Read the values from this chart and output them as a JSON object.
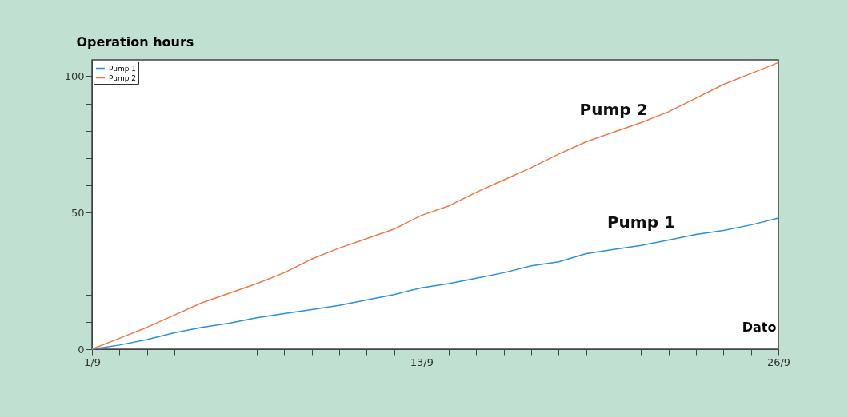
{
  "chart_data": {
    "type": "line",
    "xlabel": "Dato",
    "ylabel": "Operation hours",
    "x": [
      "--09-01",
      "--09-02",
      "--09-03",
      "--09-04",
      "--09-05",
      "--09-06",
      "--09-07",
      "--09-08",
      "--09-09",
      "--09-10",
      "--09-11",
      "--09-12",
      "--09-13",
      "--09-14",
      "--09-15",
      "--09-16",
      "--09-17",
      "--09-18",
      "--09-19",
      "--09-20",
      "--09-21",
      "--09-22",
      "--09-23",
      "--09-24",
      "--09-25",
      "--09-26"
    ],
    "series": [
      {
        "name": "Pump 1",
        "color": "#2a8fdc",
        "values": [
          0,
          1.5,
          3.5,
          6,
          8,
          9.5,
          11.5,
          13,
          14.5,
          16,
          18,
          20,
          22.5,
          24,
          26,
          28,
          30.5,
          32,
          35,
          36.5,
          38,
          40,
          42,
          43.5,
          45.5,
          48
        ]
      },
      {
        "name": "Pump 2",
        "color": "#f07846",
        "values": [
          0,
          4,
          8,
          12.5,
          17,
          20.5,
          24,
          28,
          33,
          37,
          40.5,
          44,
          49,
          52.5,
          57.5,
          62,
          66.5,
          71.5,
          76,
          79.5,
          83,
          87,
          92,
          97,
          101,
          105
        ]
      }
    ],
    "xlim": [
      "--09-01",
      "--09-26"
    ],
    "xticks": [
      {
        "value": "--09-01",
        "label": "1/9"
      },
      {
        "value": "--09-02",
        "label": null
      },
      {
        "value": "--09-03",
        "label": null
      },
      {
        "value": "--09-04",
        "label": null
      },
      {
        "value": "--09-05",
        "label": null
      },
      {
        "value": "--09-06",
        "label": null
      },
      {
        "value": "--09-07",
        "label": null
      },
      {
        "value": "--09-08",
        "label": null
      },
      {
        "value": "--09-09",
        "label": null
      },
      {
        "value": "--09-10",
        "label": null
      },
      {
        "value": "--09-11",
        "label": null
      },
      {
        "value": "--09-12",
        "label": null
      },
      {
        "value": "--09-13",
        "label": "13/9"
      },
      {
        "value": "--09-14",
        "label": null
      },
      {
        "value": "--09-15",
        "label": null
      },
      {
        "value": "--09-16",
        "label": null
      },
      {
        "value": "--09-17",
        "label": null
      },
      {
        "value": "--09-18",
        "label": null
      },
      {
        "value": "--09-19",
        "label": null
      },
      {
        "value": "--09-20",
        "label": null
      },
      {
        "value": "--09-21",
        "label": null
      },
      {
        "value": "--09-22",
        "label": null
      },
      {
        "value": "--09-23",
        "label": null
      },
      {
        "value": "--09-24",
        "label": null
      },
      {
        "value": "--09-25",
        "label": null
      },
      {
        "value": "--09-26",
        "label": "26/9"
      }
    ],
    "ylim": [
      0,
      106
    ],
    "yticks": [
      0,
      {
        "value": 10,
        "label": null
      },
      {
        "value": 20,
        "label": null
      },
      {
        "value": 30,
        "label": null
      },
      {
        "value": 40,
        "label": null
      },
      50,
      {
        "value": 60,
        "label": null
      },
      {
        "value": 70,
        "label": null
      },
      {
        "value": 80,
        "label": null
      },
      {
        "value": 90,
        "label": null
      },
      100
    ],
    "grid": false,
    "legend": "top left",
    "marker": "none",
    "line_style": "solid"
  }
}
